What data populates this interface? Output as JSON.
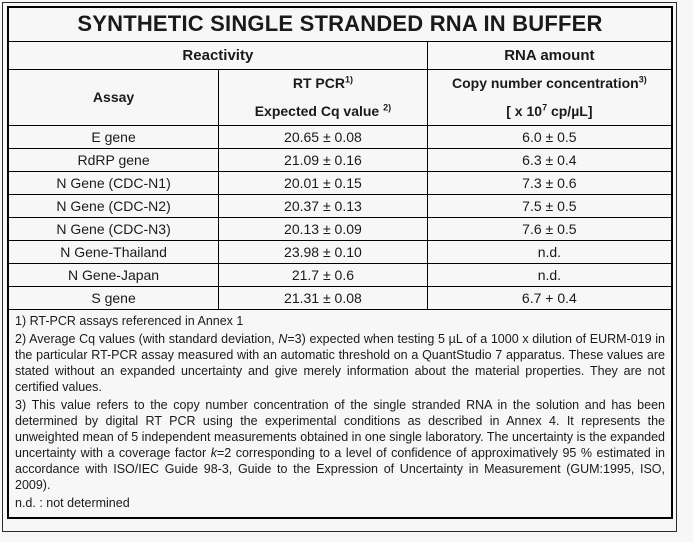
{
  "title": "SYNTHETIC SINGLE STRANDED RNA IN BUFFER",
  "colors": {
    "background": "#f7f7f7",
    "border": "#000000",
    "text": "#1a1a1a"
  },
  "table": {
    "group_headers": {
      "reactivity": "Reactivity",
      "rna_amount": "RNA amount"
    },
    "columns": {
      "assay": "Assay",
      "rt_pcr": {
        "text": "RT PCR",
        "sup": "1)"
      },
      "expected_cq": {
        "text": "Expected Cq value ",
        "sup": "2)"
      },
      "copy_number": {
        "text": "Copy number concentration",
        "sup": "3)"
      },
      "unit": {
        "pre": "[ x 10",
        "sup": "7",
        "post": " cp/µL]"
      }
    },
    "rows": [
      {
        "assay": "E gene",
        "cq": "20.65 ± 0.08",
        "copies": "6.0 ± 0.5"
      },
      {
        "assay": "RdRP gene",
        "cq": "21.09 ± 0.16",
        "copies": "6.3 ± 0.4"
      },
      {
        "assay": "N Gene (CDC-N1)",
        "cq": "20.01 ± 0.15",
        "copies": "7.3 ± 0.6"
      },
      {
        "assay": "N Gene (CDC-N2)",
        "cq": "20.37 ± 0.13",
        "copies": "7.5 ± 0.5"
      },
      {
        "assay": "N Gene (CDC-N3)",
        "cq": "20.13 ± 0.09",
        "copies": "7.6 ± 0.5"
      },
      {
        "assay": "N Gene-Thailand",
        "cq": "23.98 ± 0.10",
        "copies": "n.d."
      },
      {
        "assay": "N Gene-Japan",
        "cq": "21.7 ± 0.6",
        "copies": "n.d."
      },
      {
        "assay": "S gene",
        "cq": "21.31 ± 0.08",
        "copies": "6.7 + 0.4"
      }
    ]
  },
  "footnotes": {
    "fn1": "1) RT-PCR assays referenced in Annex 1",
    "fn2": {
      "pre": "2) Average Cq values (with standard deviation, ",
      "italic": "N",
      "post": "=3) expected when testing 5 µL of a 1000 x dilution of EURM-019 in the particular RT-PCR assay measured with an automatic threshold on a QuantStudio 7 apparatus. These values are stated without an expanded uncertainty and give merely information about the material properties. They are not certified values."
    },
    "fn3": {
      "pre": "3) This value refers to the copy number concentration of the single stranded RNA in the solution and has been determined by digital RT PCR using the experimental conditions as described in Annex 4. It represents the unweighted mean of 5 independent measurements obtained in one single laboratory. The uncertainty is the expanded uncertainty with a coverage factor ",
      "italic": "k",
      "post": "=2 corresponding to a level of confidence of approximatively 95 % estimated in accordance with ISO/IEC Guide 98-3, Guide to the Expression of Uncertainty in Measurement (GUM:1995, ISO, 2009)."
    },
    "fn4": "n.d. : not determined"
  }
}
